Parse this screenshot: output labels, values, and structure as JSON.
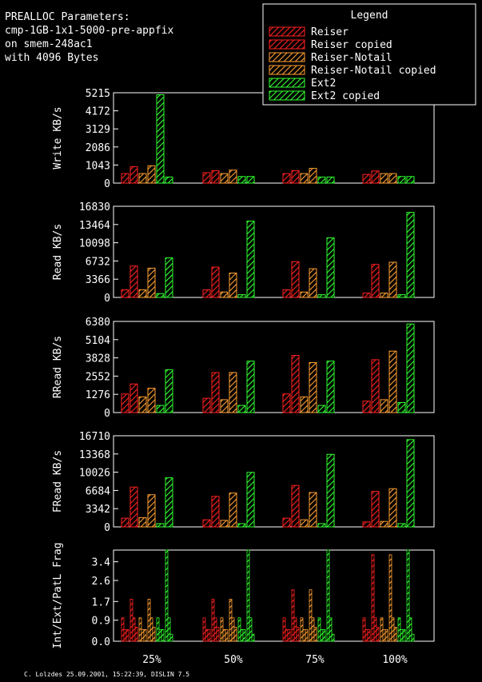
{
  "header": {
    "lines": [
      "PREALLOC Parameters:",
      "cmp-1GB-1x1-5000-pre-appfix",
      "on smem-248ac1",
      "with 4096 Bytes"
    ]
  },
  "legend": {
    "title": "Legend",
    "placement": "top-right",
    "entries": [
      {
        "label": "Reiser",
        "color": "#ff2020"
      },
      {
        "label": "Reiser copied",
        "color": "#ff2020"
      },
      {
        "label": "Reiser-Notail",
        "color": "#ffa030"
      },
      {
        "label": "Reiser-Notail copied",
        "color": "#ffa030"
      },
      {
        "label": "Ext2",
        "color": "#30ff30"
      },
      {
        "label": "Ext2 copied",
        "color": "#30ff30"
      }
    ]
  },
  "footer": "C. Lolzdes 25.09.2001, 15:22:39, DISLIN 7.5",
  "chart_data": [
    {
      "type": "bar",
      "ylabel": "Write KB/s",
      "categories": [
        "25%",
        "50%",
        "75%",
        "100%"
      ],
      "ylim": [
        0,
        5215
      ],
      "yticks": [
        "0",
        "1043",
        "2086",
        "3129",
        "4172",
        "5215"
      ],
      "series": [
        {
          "name": "Reiser",
          "values": [
            550,
            600,
            550,
            500
          ]
        },
        {
          "name": "Reiser copied",
          "values": [
            950,
            720,
            720,
            700
          ]
        },
        {
          "name": "Reiser-Notail",
          "values": [
            550,
            550,
            550,
            550
          ]
        },
        {
          "name": "Reiser-Notail copied",
          "values": [
            1000,
            750,
            850,
            550
          ]
        },
        {
          "name": "Ext2",
          "values": [
            5100,
            380,
            350,
            380
          ]
        },
        {
          "name": "Ext2 copied",
          "values": [
            350,
            380,
            350,
            380
          ]
        }
      ]
    },
    {
      "type": "bar",
      "ylabel": "Read KB/s",
      "categories": [
        "25%",
        "50%",
        "75%",
        "100%"
      ],
      "ylim": [
        0,
        16830
      ],
      "yticks": [
        "0",
        "3366",
        "6732",
        "10098",
        "13464",
        "16830"
      ],
      "series": [
        {
          "name": "Reiser",
          "values": [
            1400,
            1400,
            1400,
            800
          ]
        },
        {
          "name": "Reiser copied",
          "values": [
            5800,
            5600,
            6600,
            6100
          ]
        },
        {
          "name": "Reiser-Notail",
          "values": [
            1400,
            1000,
            1000,
            800
          ]
        },
        {
          "name": "Reiser-Notail copied",
          "values": [
            5400,
            4500,
            5300,
            6500
          ]
        },
        {
          "name": "Ext2",
          "values": [
            700,
            500,
            500,
            500
          ]
        },
        {
          "name": "Ext2 copied",
          "values": [
            7300,
            14100,
            11000,
            15700
          ]
        }
      ]
    },
    {
      "type": "bar",
      "ylabel": "RRead KB/s",
      "categories": [
        "25%",
        "50%",
        "75%",
        "100%"
      ],
      "ylim": [
        0,
        6380
      ],
      "yticks": [
        "0",
        "1276",
        "2552",
        "3828",
        "5104",
        "6380"
      ],
      "series": [
        {
          "name": "Reiser",
          "values": [
            1300,
            1000,
            1300,
            800
          ]
        },
        {
          "name": "Reiser copied",
          "values": [
            2000,
            2800,
            4000,
            3700
          ]
        },
        {
          "name": "Reiser-Notail",
          "values": [
            1100,
            900,
            1100,
            900
          ]
        },
        {
          "name": "Reiser-Notail copied",
          "values": [
            1700,
            2800,
            3500,
            4300
          ]
        },
        {
          "name": "Ext2",
          "values": [
            500,
            500,
            500,
            700
          ]
        },
        {
          "name": "Ext2 copied",
          "values": [
            3000,
            3600,
            3600,
            6200
          ]
        }
      ]
    },
    {
      "type": "bar",
      "ylabel": "FRead KB/s",
      "categories": [
        "25%",
        "50%",
        "75%",
        "100%"
      ],
      "ylim": [
        0,
        16710
      ],
      "yticks": [
        "0",
        "3342",
        "6684",
        "10026",
        "13368",
        "16710"
      ],
      "series": [
        {
          "name": "Reiser",
          "values": [
            1600,
            1300,
            1600,
            900
          ]
        },
        {
          "name": "Reiser copied",
          "values": [
            7300,
            5600,
            7600,
            6500
          ]
        },
        {
          "name": "Reiser-Notail",
          "values": [
            1700,
            1200,
            1300,
            1000
          ]
        },
        {
          "name": "Reiser-Notail copied",
          "values": [
            5900,
            6200,
            6300,
            7000
          ]
        },
        {
          "name": "Ext2",
          "values": [
            600,
            600,
            600,
            600
          ]
        },
        {
          "name": "Ext2 copied",
          "values": [
            9000,
            10000,
            13300,
            16000
          ]
        }
      ]
    },
    {
      "type": "bar",
      "ylabel": "Int/Ext/PatL Frag",
      "categories": [
        "25%",
        "50%",
        "75%",
        "100%"
      ],
      "ylim": [
        0,
        3.9
      ],
      "yticks": [
        "0.0",
        "0.9",
        "1.7",
        "2.6",
        "3.4"
      ],
      "series": [
        {
          "name": "Reiser",
          "values": [
            [
              1.0,
              0.5,
              0.5
            ],
            [
              1.0,
              0.5,
              0.5
            ],
            [
              1.0,
              0.5,
              0.5
            ],
            [
              1.0,
              0.5,
              0.5
            ]
          ]
        },
        {
          "name": "Reiser copied",
          "values": [
            [
              1.8,
              1.0,
              0.6
            ],
            [
              1.8,
              1.0,
              0.6
            ],
            [
              2.2,
              1.0,
              0.6
            ],
            [
              3.7,
              1.0,
              0.6
            ]
          ]
        },
        {
          "name": "Reiser-Notail",
          "values": [
            [
              1.0,
              0.5,
              0.5
            ],
            [
              1.0,
              0.5,
              0.5
            ],
            [
              1.0,
              0.5,
              0.5
            ],
            [
              1.0,
              0.5,
              0.5
            ]
          ]
        },
        {
          "name": "Reiser-Notail copied",
          "values": [
            [
              1.8,
              1.0,
              0.6
            ],
            [
              1.8,
              1.0,
              0.6
            ],
            [
              2.2,
              1.0,
              0.6
            ],
            [
              3.7,
              1.0,
              0.6
            ]
          ]
        },
        {
          "name": "Ext2",
          "values": [
            [
              1.0,
              0.5,
              0.5
            ],
            [
              1.0,
              0.5,
              0.5
            ],
            [
              1.0,
              0.5,
              0.5
            ],
            [
              1.0,
              0.5,
              0.5
            ]
          ]
        },
        {
          "name": "Ext2 copied",
          "values": [
            [
              3.9,
              1.0,
              0.3
            ],
            [
              3.9,
              1.0,
              0.3
            ],
            [
              3.9,
              1.0,
              0.3
            ],
            [
              3.9,
              1.0,
              0.3
            ]
          ]
        }
      ]
    }
  ]
}
